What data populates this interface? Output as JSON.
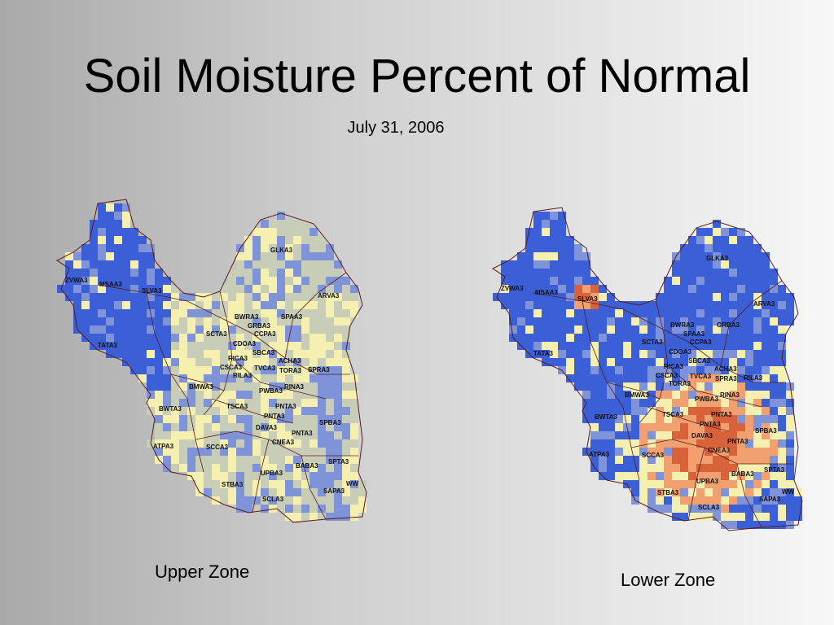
{
  "title": "Soil Moisture Percent of Normal",
  "date": "July 31, 2006",
  "colors": {
    "wet": "#3a5fd6",
    "slightly_wet": "#7f93d8",
    "near_normal": "#c8cdb8",
    "slightly_dry": "#f5f0b0",
    "dry": "#f2a070",
    "very_dry": "#d8623a",
    "boundary": "#5b1a1a"
  },
  "maps": [
    {
      "id": "upper",
      "caption": "Upper Zone",
      "labels": [
        "GLKA3",
        "ZVWA3",
        "MSAA3",
        "SLVA3",
        "ARVA3",
        "TATA3",
        "BWRA3",
        "GRBA3",
        "SPAA3",
        "SCTA3",
        "CCPA3",
        "CDOA3",
        "SBCA3",
        "RICA3",
        "ACHA3",
        "CSCA3",
        "TVCA3",
        "RILA3",
        "TORA3",
        "SPRA3",
        "BMWA3",
        "PWBA3",
        "RINA3",
        "BWTA3",
        "TSCA3",
        "PNTA3",
        "PNTA3",
        "DAVA3",
        "SPBA3",
        "PNTA3",
        "CNEA3",
        "ATPA3",
        "SCCA3",
        "SPTA3",
        "BABA3",
        "UPBA3",
        "WW",
        "STBA3",
        "SAPA3",
        "SCLA3"
      ]
    },
    {
      "id": "lower",
      "caption": "Lower Zone",
      "labels": [
        "GLKA3",
        "ZVWA3",
        "MSAA3",
        "SLVA3",
        "ARVA3",
        "TATA3",
        "BWRA3",
        "SPAA3",
        "GRBA3",
        "SCTA3",
        "CCPA3",
        "CDOA3",
        "SBCA3",
        "RICA3",
        "ACHA3",
        "CSCA3",
        "TVCA3",
        "TORA3",
        "SPRA3",
        "RILA3",
        "BMWA3",
        "PWBA3",
        "RINA3",
        "BWTA3",
        "TSCA3",
        "PNTA3",
        "PNTA3",
        "DAVA3",
        "SPBA3",
        "PNTA3",
        "CNEA3",
        "ATPA3",
        "SCCA3",
        "SPTA3",
        "BABA3",
        "UPBA3",
        "WW",
        "STBA3",
        "SAPA3",
        "SCLA3"
      ]
    }
  ]
}
